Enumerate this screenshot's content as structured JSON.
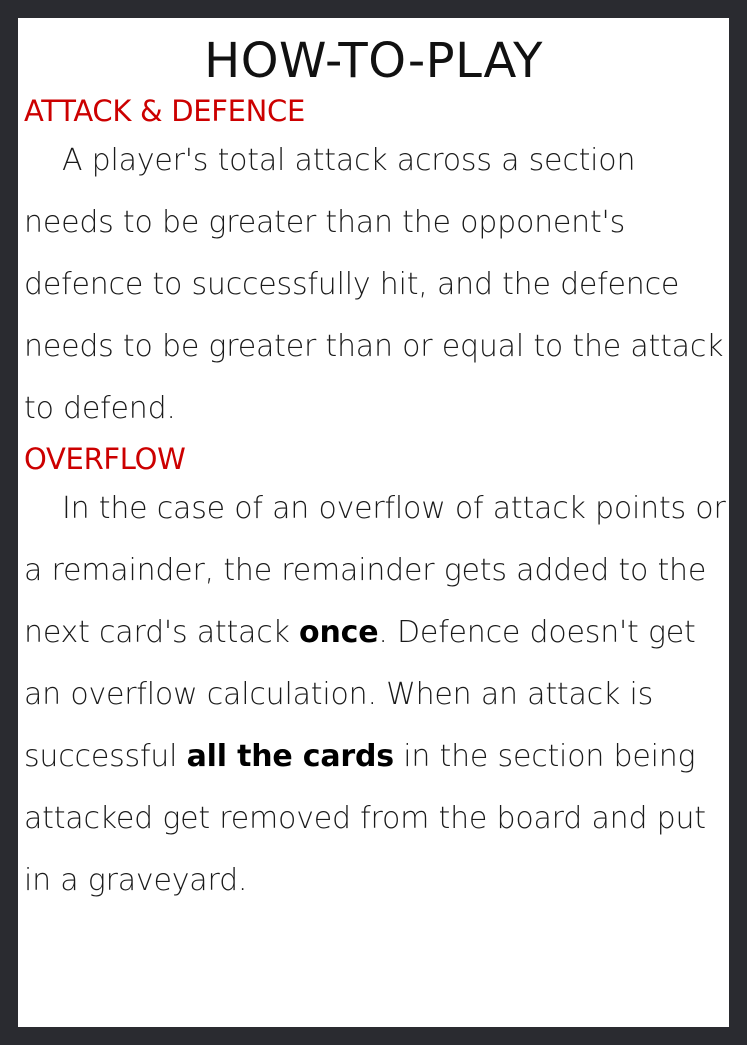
{
  "page": {
    "title": "HOW-TO-PLAY"
  },
  "sections": [
    {
      "heading": "ATTACK & DEFENCE",
      "body": "A player's total attack across a section needs to be greater than the opponent's defence to successfully hit, and the defence needs to be greater than or equal to the attack to defend."
    },
    {
      "heading": "OVERFLOW",
      "body_part1": "In the case of an overflow of attack points or a remainder, the remainder gets added to the next card's attack ",
      "emphasis1": "once",
      "body_part2": ". Defence doesn't get an overflow calculation. When an attack is successful ",
      "emphasis2": "all the cards",
      "body_part3": " in the section being attacked get removed from the board and put in a graveyard."
    }
  ],
  "colors": {
    "heading": "#cc0000",
    "background": "#2a2b30",
    "panel": "#ffffff"
  }
}
